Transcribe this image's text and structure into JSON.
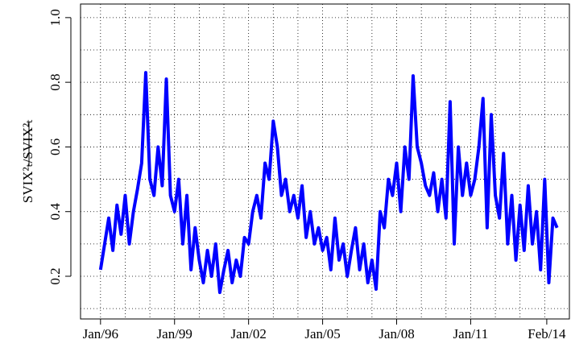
{
  "chart_data": {
    "type": "line",
    "ylabel": "SVIX²ₜ/SVIX²ₜ",
    "color": "#0000ff",
    "x": [
      1996,
      1996.167,
      1996.333,
      1996.5,
      1996.667,
      1996.833,
      1997,
      1997.167,
      1997.333,
      1997.5,
      1997.667,
      1997.833,
      1998,
      1998.167,
      1998.333,
      1998.5,
      1998.667,
      1998.833,
      1999,
      1999.167,
      1999.333,
      1999.5,
      1999.667,
      1999.833,
      2000,
      2000.167,
      2000.333,
      2000.5,
      2000.667,
      2000.833,
      2001,
      2001.167,
      2001.333,
      2001.5,
      2001.667,
      2001.833,
      2002,
      2002.167,
      2002.333,
      2002.5,
      2002.667,
      2002.833,
      2003,
      2003.167,
      2003.333,
      2003.5,
      2003.667,
      2003.833,
      2004,
      2004.167,
      2004.333,
      2004.5,
      2004.667,
      2004.833,
      2005,
      2005.167,
      2005.333,
      2005.5,
      2005.667,
      2005.833,
      2006,
      2006.167,
      2006.333,
      2006.5,
      2006.667,
      2006.833,
      2007,
      2007.167,
      2007.333,
      2007.5,
      2007.667,
      2007.833,
      2008,
      2008.167,
      2008.333,
      2008.5,
      2008.667,
      2008.833,
      2009,
      2009.167,
      2009.333,
      2009.5,
      2009.667,
      2009.833,
      2010,
      2010.167,
      2010.333,
      2010.5,
      2010.667,
      2010.833,
      2011,
      2011.167,
      2011.333,
      2011.5,
      2011.667,
      2011.833,
      2012,
      2012.167,
      2012.333,
      2012.5,
      2012.667,
      2012.833,
      2013,
      2013.167,
      2013.333,
      2013.5,
      2013.667,
      2013.833,
      2014,
      2014.167,
      2014.333,
      2014.5
    ],
    "values": [
      0.22,
      0.3,
      0.38,
      0.28,
      0.42,
      0.33,
      0.45,
      0.3,
      0.4,
      0.47,
      0.55,
      0.83,
      0.5,
      0.45,
      0.6,
      0.48,
      0.81,
      0.45,
      0.4,
      0.5,
      0.3,
      0.45,
      0.22,
      0.35,
      0.25,
      0.18,
      0.28,
      0.2,
      0.3,
      0.15,
      0.22,
      0.28,
      0.18,
      0.25,
      0.2,
      0.32,
      0.3,
      0.4,
      0.45,
      0.38,
      0.55,
      0.5,
      0.68,
      0.6,
      0.45,
      0.5,
      0.4,
      0.45,
      0.38,
      0.48,
      0.32,
      0.4,
      0.3,
      0.35,
      0.28,
      0.32,
      0.22,
      0.38,
      0.25,
      0.3,
      0.2,
      0.28,
      0.35,
      0.22,
      0.3,
      0.18,
      0.25,
      0.16,
      0.4,
      0.35,
      0.5,
      0.45,
      0.55,
      0.4,
      0.6,
      0.5,
      0.82,
      0.6,
      0.55,
      0.48,
      0.45,
      0.52,
      0.4,
      0.5,
      0.38,
      0.74,
      0.3,
      0.6,
      0.45,
      0.55,
      0.45,
      0.5,
      0.6,
      0.75,
      0.35,
      0.7,
      0.45,
      0.38,
      0.58,
      0.3,
      0.45,
      0.25,
      0.42,
      0.28,
      0.48,
      0.3,
      0.4,
      0.22,
      0.5,
      0.18,
      0.38,
      0.35
    ],
    "xlim": [
      1995.19,
      2015.0
    ],
    "ylim": [
      0.068,
      1.042
    ],
    "xticks": [
      {
        "value": 1996,
        "label": "Jan/96"
      },
      {
        "value": 1999,
        "label": "Jan/99"
      },
      {
        "value": 2002,
        "label": "Jan/02"
      },
      {
        "value": 2005,
        "label": "Jan/05"
      },
      {
        "value": 2008,
        "label": "Jan/08"
      },
      {
        "value": 2011,
        "label": "Jan/11"
      },
      {
        "value": 2014.083,
        "label": "Feb/14"
      }
    ],
    "yticks": [
      0.2,
      0.4,
      0.6,
      0.8,
      {
        "value": 1.0,
        "label": "1.0"
      }
    ],
    "xgrid": [
      1996,
      1997,
      1998,
      1999,
      2000,
      2001,
      2002,
      2003,
      2004,
      2005,
      2006,
      2007,
      2008,
      2009,
      2010,
      2011,
      2012,
      2013,
      2014
    ],
    "ygrid": [
      0.1,
      0.2,
      0.3,
      0.4,
      0.5,
      0.6,
      0.7,
      0.8,
      0.9,
      1.0
    ],
    "grid": true
  }
}
